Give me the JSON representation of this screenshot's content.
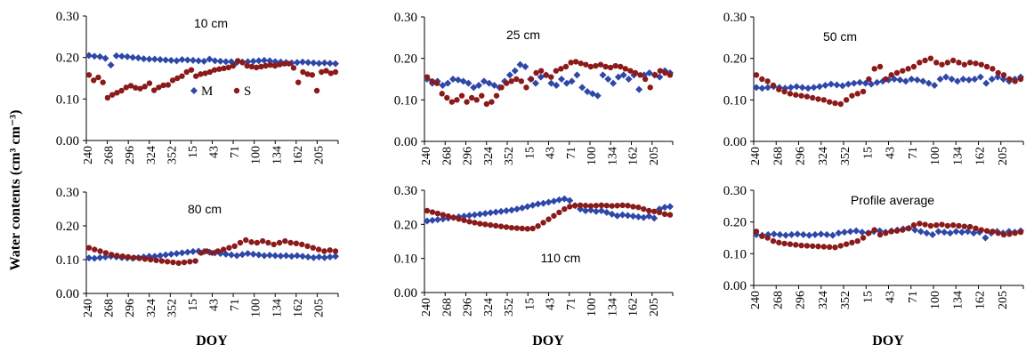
{
  "figure": {
    "ylabel": "Water contents (cm³ cm⁻³)",
    "xlabel": "DOY"
  },
  "legend": {
    "series": [
      {
        "name": "M",
        "color": "#2e47a8",
        "marker": "diamond"
      },
      {
        "name": "S",
        "color": "#8b1a1a",
        "marker": "circle"
      }
    ]
  },
  "chart_data": [
    {
      "type": "scatter",
      "title": "10 cm",
      "x_ticks": [
        "240",
        "268",
        "296",
        "324",
        "352",
        "15",
        "43",
        "71",
        "100",
        "134",
        "162",
        "205"
      ],
      "y_ticks": [
        "0.00",
        "0.10",
        "0.20",
        "0.30"
      ],
      "ylim": [
        0,
        0.3
      ],
      "series": [
        {
          "name": "M",
          "values": [
            0.205,
            0.203,
            0.202,
            0.198,
            0.182,
            0.204,
            0.203,
            0.202,
            0.2,
            0.199,
            0.197,
            0.196,
            0.196,
            0.195,
            0.194,
            0.193,
            0.192,
            0.195,
            0.194,
            0.193,
            0.192,
            0.191,
            0.196,
            0.192,
            0.191,
            0.19,
            0.19,
            0.188,
            0.189,
            0.19,
            0.191,
            0.192,
            0.193,
            0.192,
            0.19,
            0.189,
            0.188,
            0.187,
            0.188,
            0.189,
            0.188,
            0.187,
            0.186,
            0.187,
            0.186,
            0.185
          ]
        },
        {
          "name": "S",
          "values": [
            0.158,
            0.145,
            0.152,
            0.14,
            0.103,
            0.11,
            0.115,
            0.12,
            0.128,
            0.132,
            0.127,
            0.125,
            0.13,
            0.138,
            0.121,
            0.128,
            0.133,
            0.134,
            0.145,
            0.15,
            0.155,
            0.165,
            0.17,
            0.155,
            0.16,
            0.162,
            0.165,
            0.17,
            0.172,
            0.174,
            0.176,
            0.18,
            0.192,
            0.188,
            0.18,
            0.178,
            0.176,
            0.178,
            0.18,
            0.182,
            0.18,
            0.183,
            0.185,
            0.185,
            0.175,
            0.14,
            0.165,
            0.16,
            0.158,
            0.12,
            0.165,
            0.168,
            0.162,
            0.165
          ]
        }
      ]
    },
    {
      "type": "scatter",
      "title": "25 cm",
      "x_ticks": [
        "240",
        "268",
        "296",
        "324",
        "352",
        "15",
        "43",
        "71",
        "100",
        "134",
        "162",
        "205"
      ],
      "y_ticks": [
        "0.00",
        "0.10",
        "0.20",
        "0.30"
      ],
      "ylim": [
        0,
        0.3
      ],
      "series": [
        {
          "name": "M",
          "values": [
            0.15,
            0.14,
            0.145,
            0.135,
            0.14,
            0.15,
            0.148,
            0.145,
            0.14,
            0.13,
            0.135,
            0.145,
            0.14,
            0.135,
            0.13,
            0.145,
            0.16,
            0.17,
            0.185,
            0.18,
            0.15,
            0.14,
            0.155,
            0.16,
            0.14,
            0.135,
            0.15,
            0.14,
            0.145,
            0.16,
            0.13,
            0.12,
            0.115,
            0.11,
            0.16,
            0.15,
            0.14,
            0.155,
            0.16,
            0.15,
            0.16,
            0.125,
            0.16,
            0.165,
            0.16,
            0.155,
            0.17,
            0.165
          ]
        },
        {
          "name": "S",
          "values": [
            0.155,
            0.145,
            0.14,
            0.115,
            0.105,
            0.095,
            0.1,
            0.11,
            0.095,
            0.105,
            0.1,
            0.11,
            0.09,
            0.095,
            0.11,
            0.13,
            0.14,
            0.145,
            0.15,
            0.145,
            0.13,
            0.15,
            0.165,
            0.17,
            0.16,
            0.155,
            0.17,
            0.175,
            0.18,
            0.19,
            0.192,
            0.188,
            0.185,
            0.18,
            0.182,
            0.185,
            0.18,
            0.178,
            0.182,
            0.18,
            0.175,
            0.17,
            0.165,
            0.16,
            0.15,
            0.13,
            0.16,
            0.17,
            0.165,
            0.16
          ]
        }
      ]
    },
    {
      "type": "scatter",
      "title": "50 cm",
      "x_ticks": [
        "240",
        "268",
        "296",
        "324",
        "352",
        "15",
        "43",
        "71",
        "100",
        "134",
        "162",
        "205"
      ],
      "y_ticks": [
        "0.00",
        "0.10",
        "0.20",
        "0.30"
      ],
      "ylim": [
        0,
        0.3
      ],
      "series": [
        {
          "name": "M",
          "values": [
            0.13,
            0.128,
            0.13,
            0.132,
            0.13,
            0.128,
            0.13,
            0.132,
            0.13,
            0.128,
            0.13,
            0.132,
            0.135,
            0.138,
            0.136,
            0.134,
            0.138,
            0.14,
            0.142,
            0.14,
            0.138,
            0.142,
            0.145,
            0.148,
            0.15,
            0.148,
            0.145,
            0.15,
            0.148,
            0.145,
            0.14,
            0.135,
            0.15,
            0.155,
            0.15,
            0.145,
            0.15,
            0.148,
            0.15,
            0.155,
            0.14,
            0.15,
            0.155,
            0.15,
            0.145,
            0.15,
            0.155
          ]
        },
        {
          "name": "S",
          "values": [
            0.16,
            0.15,
            0.145,
            0.135,
            0.125,
            0.12,
            0.115,
            0.112,
            0.11,
            0.108,
            0.105,
            0.102,
            0.1,
            0.095,
            0.092,
            0.09,
            0.1,
            0.11,
            0.115,
            0.12,
            0.15,
            0.175,
            0.18,
            0.15,
            0.16,
            0.165,
            0.17,
            0.175,
            0.18,
            0.19,
            0.195,
            0.2,
            0.19,
            0.185,
            0.19,
            0.195,
            0.19,
            0.185,
            0.19,
            0.188,
            0.185,
            0.18,
            0.175,
            0.165,
            0.16,
            0.15,
            0.145,
            0.15
          ]
        }
      ]
    },
    {
      "type": "scatter",
      "title": "80 cm",
      "x_ticks": [
        "240",
        "268",
        "296",
        "324",
        "352",
        "15",
        "43",
        "71",
        "100",
        "134",
        "162",
        "205"
      ],
      "y_ticks": [
        "0.00",
        "0.10",
        "0.20",
        "0.30"
      ],
      "ylim": [
        0,
        0.3
      ],
      "series": [
        {
          "name": "M",
          "values": [
            0.105,
            0.104,
            0.106,
            0.108,
            0.11,
            0.108,
            0.106,
            0.105,
            0.104,
            0.106,
            0.108,
            0.11,
            0.11,
            0.112,
            0.114,
            0.116,
            0.118,
            0.12,
            0.122,
            0.124,
            0.125,
            0.124,
            0.122,
            0.12,
            0.118,
            0.116,
            0.114,
            0.112,
            0.115,
            0.118,
            0.116,
            0.114,
            0.112,
            0.113,
            0.112,
            0.111,
            0.112,
            0.11,
            0.112,
            0.11,
            0.108,
            0.106,
            0.108,
            0.106,
            0.108,
            0.11
          ]
        },
        {
          "name": "S",
          "values": [
            0.135,
            0.13,
            0.125,
            0.12,
            0.115,
            0.112,
            0.11,
            0.108,
            0.106,
            0.104,
            0.102,
            0.1,
            0.098,
            0.096,
            0.094,
            0.092,
            0.09,
            0.092,
            0.094,
            0.096,
            0.12,
            0.125,
            0.12,
            0.125,
            0.13,
            0.135,
            0.14,
            0.15,
            0.158,
            0.152,
            0.15,
            0.155,
            0.15,
            0.145,
            0.15,
            0.155,
            0.15,
            0.148,
            0.145,
            0.14,
            0.135,
            0.13,
            0.125,
            0.128,
            0.125
          ]
        }
      ]
    },
    {
      "type": "scatter",
      "title": "110 cm",
      "x_ticks": [
        "240",
        "268",
        "296",
        "324",
        "352",
        "15",
        "43",
        "71",
        "100",
        "134",
        "162",
        "205"
      ],
      "y_ticks": [
        "0.00",
        "0.10",
        "0.20",
        "0.30"
      ],
      "ylim": [
        0,
        0.3
      ],
      "series": [
        {
          "name": "M",
          "values": [
            0.21,
            0.212,
            0.214,
            0.216,
            0.218,
            0.22,
            0.222,
            0.224,
            0.226,
            0.228,
            0.23,
            0.232,
            0.234,
            0.236,
            0.238,
            0.24,
            0.242,
            0.245,
            0.248,
            0.252,
            0.256,
            0.26,
            0.262,
            0.265,
            0.268,
            0.272,
            0.275,
            0.27,
            0.255,
            0.245,
            0.24,
            0.242,
            0.238,
            0.24,
            0.235,
            0.23,
            0.225,
            0.228,
            0.226,
            0.224,
            0.222,
            0.22,
            0.224,
            0.218,
            0.245,
            0.25,
            0.252
          ]
        },
        {
          "name": "S",
          "values": [
            0.24,
            0.236,
            0.232,
            0.228,
            0.224,
            0.22,
            0.216,
            0.212,
            0.208,
            0.205,
            0.202,
            0.2,
            0.198,
            0.196,
            0.194,
            0.192,
            0.19,
            0.189,
            0.188,
            0.187,
            0.188,
            0.195,
            0.205,
            0.215,
            0.225,
            0.235,
            0.245,
            0.252,
            0.255,
            0.256,
            0.255,
            0.254,
            0.255,
            0.256,
            0.255,
            0.254,
            0.255,
            0.256,
            0.255,
            0.252,
            0.25,
            0.245,
            0.24,
            0.238,
            0.235,
            0.23,
            0.228
          ]
        }
      ]
    },
    {
      "type": "scatter",
      "title": "Profile average",
      "x_ticks": [
        "240",
        "268",
        "296",
        "324",
        "352",
        "15",
        "43",
        "71",
        "100",
        "134",
        "162",
        "205"
      ],
      "y_ticks": [
        "0.00",
        "0.10",
        "0.20",
        "0.30"
      ],
      "ylim": [
        0,
        0.3
      ],
      "series": [
        {
          "name": "M",
          "values": [
            0.16,
            0.158,
            0.16,
            0.162,
            0.16,
            0.158,
            0.16,
            0.162,
            0.16,
            0.158,
            0.16,
            0.162,
            0.16,
            0.158,
            0.165,
            0.168,
            0.17,
            0.172,
            0.168,
            0.165,
            0.17,
            0.172,
            0.168,
            0.172,
            0.175,
            0.178,
            0.18,
            0.175,
            0.17,
            0.165,
            0.16,
            0.17,
            0.168,
            0.165,
            0.17,
            0.168,
            0.17,
            0.165,
            0.168,
            0.15,
            0.165,
            0.17,
            0.165,
            0.17,
            0.168,
            0.172
          ]
        },
        {
          "name": "S",
          "values": [
            0.17,
            0.155,
            0.15,
            0.14,
            0.135,
            0.132,
            0.13,
            0.128,
            0.126,
            0.125,
            0.124,
            0.123,
            0.122,
            0.121,
            0.12,
            0.125,
            0.13,
            0.135,
            0.14,
            0.15,
            0.165,
            0.175,
            0.16,
            0.165,
            0.17,
            0.172,
            0.175,
            0.18,
            0.19,
            0.195,
            0.192,
            0.188,
            0.19,
            0.192,
            0.188,
            0.19,
            0.188,
            0.186,
            0.185,
            0.18,
            0.175,
            0.172,
            0.17,
            0.165,
            0.16,
            0.162,
            0.165,
            0.168
          ]
        }
      ]
    }
  ]
}
